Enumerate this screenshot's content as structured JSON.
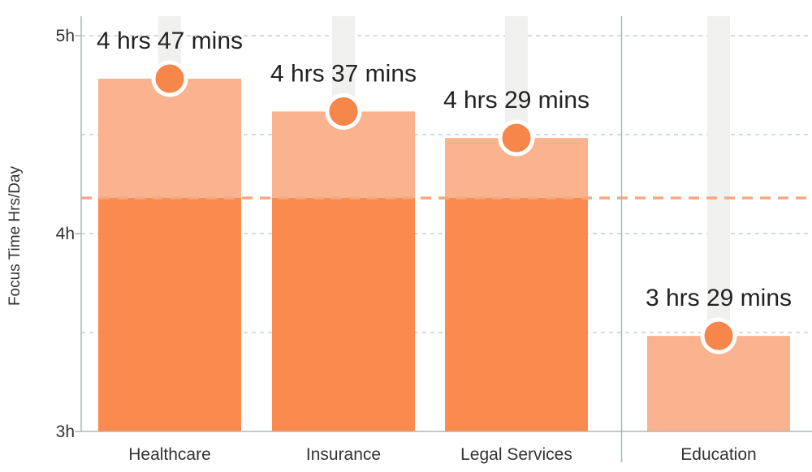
{
  "chart_data": {
    "type": "bar",
    "title": "",
    "xlabel": "",
    "ylabel": "Focus Time Hrs/Day",
    "ylim": [
      3,
      5.1
    ],
    "yticks": [
      3,
      4,
      5
    ],
    "ytick_labels": [
      "3h",
      "4h",
      "5h"
    ],
    "grid": "dashed horizontal every 0.5h",
    "categories": [
      "Healthcare",
      "Insurance",
      "Legal Services",
      "Education"
    ],
    "values": [
      4.783,
      4.617,
      4.483,
      3.483
    ],
    "data_labels": [
      "4 hrs 47 mins",
      "4 hrs 37 mins",
      "4 hrs 29 mins",
      "3 hrs 29 mins"
    ],
    "reference_line": 4.18,
    "separator_before_category": 3,
    "colors": {
      "bar_upper": "#fbb28e",
      "bar_lower": "#fb8a4e",
      "marker": "#f7864b",
      "reference": "#f6a882",
      "track": "#f0f1ef",
      "axis": "#a8bbb5",
      "grid": "#b7c7c1"
    }
  }
}
